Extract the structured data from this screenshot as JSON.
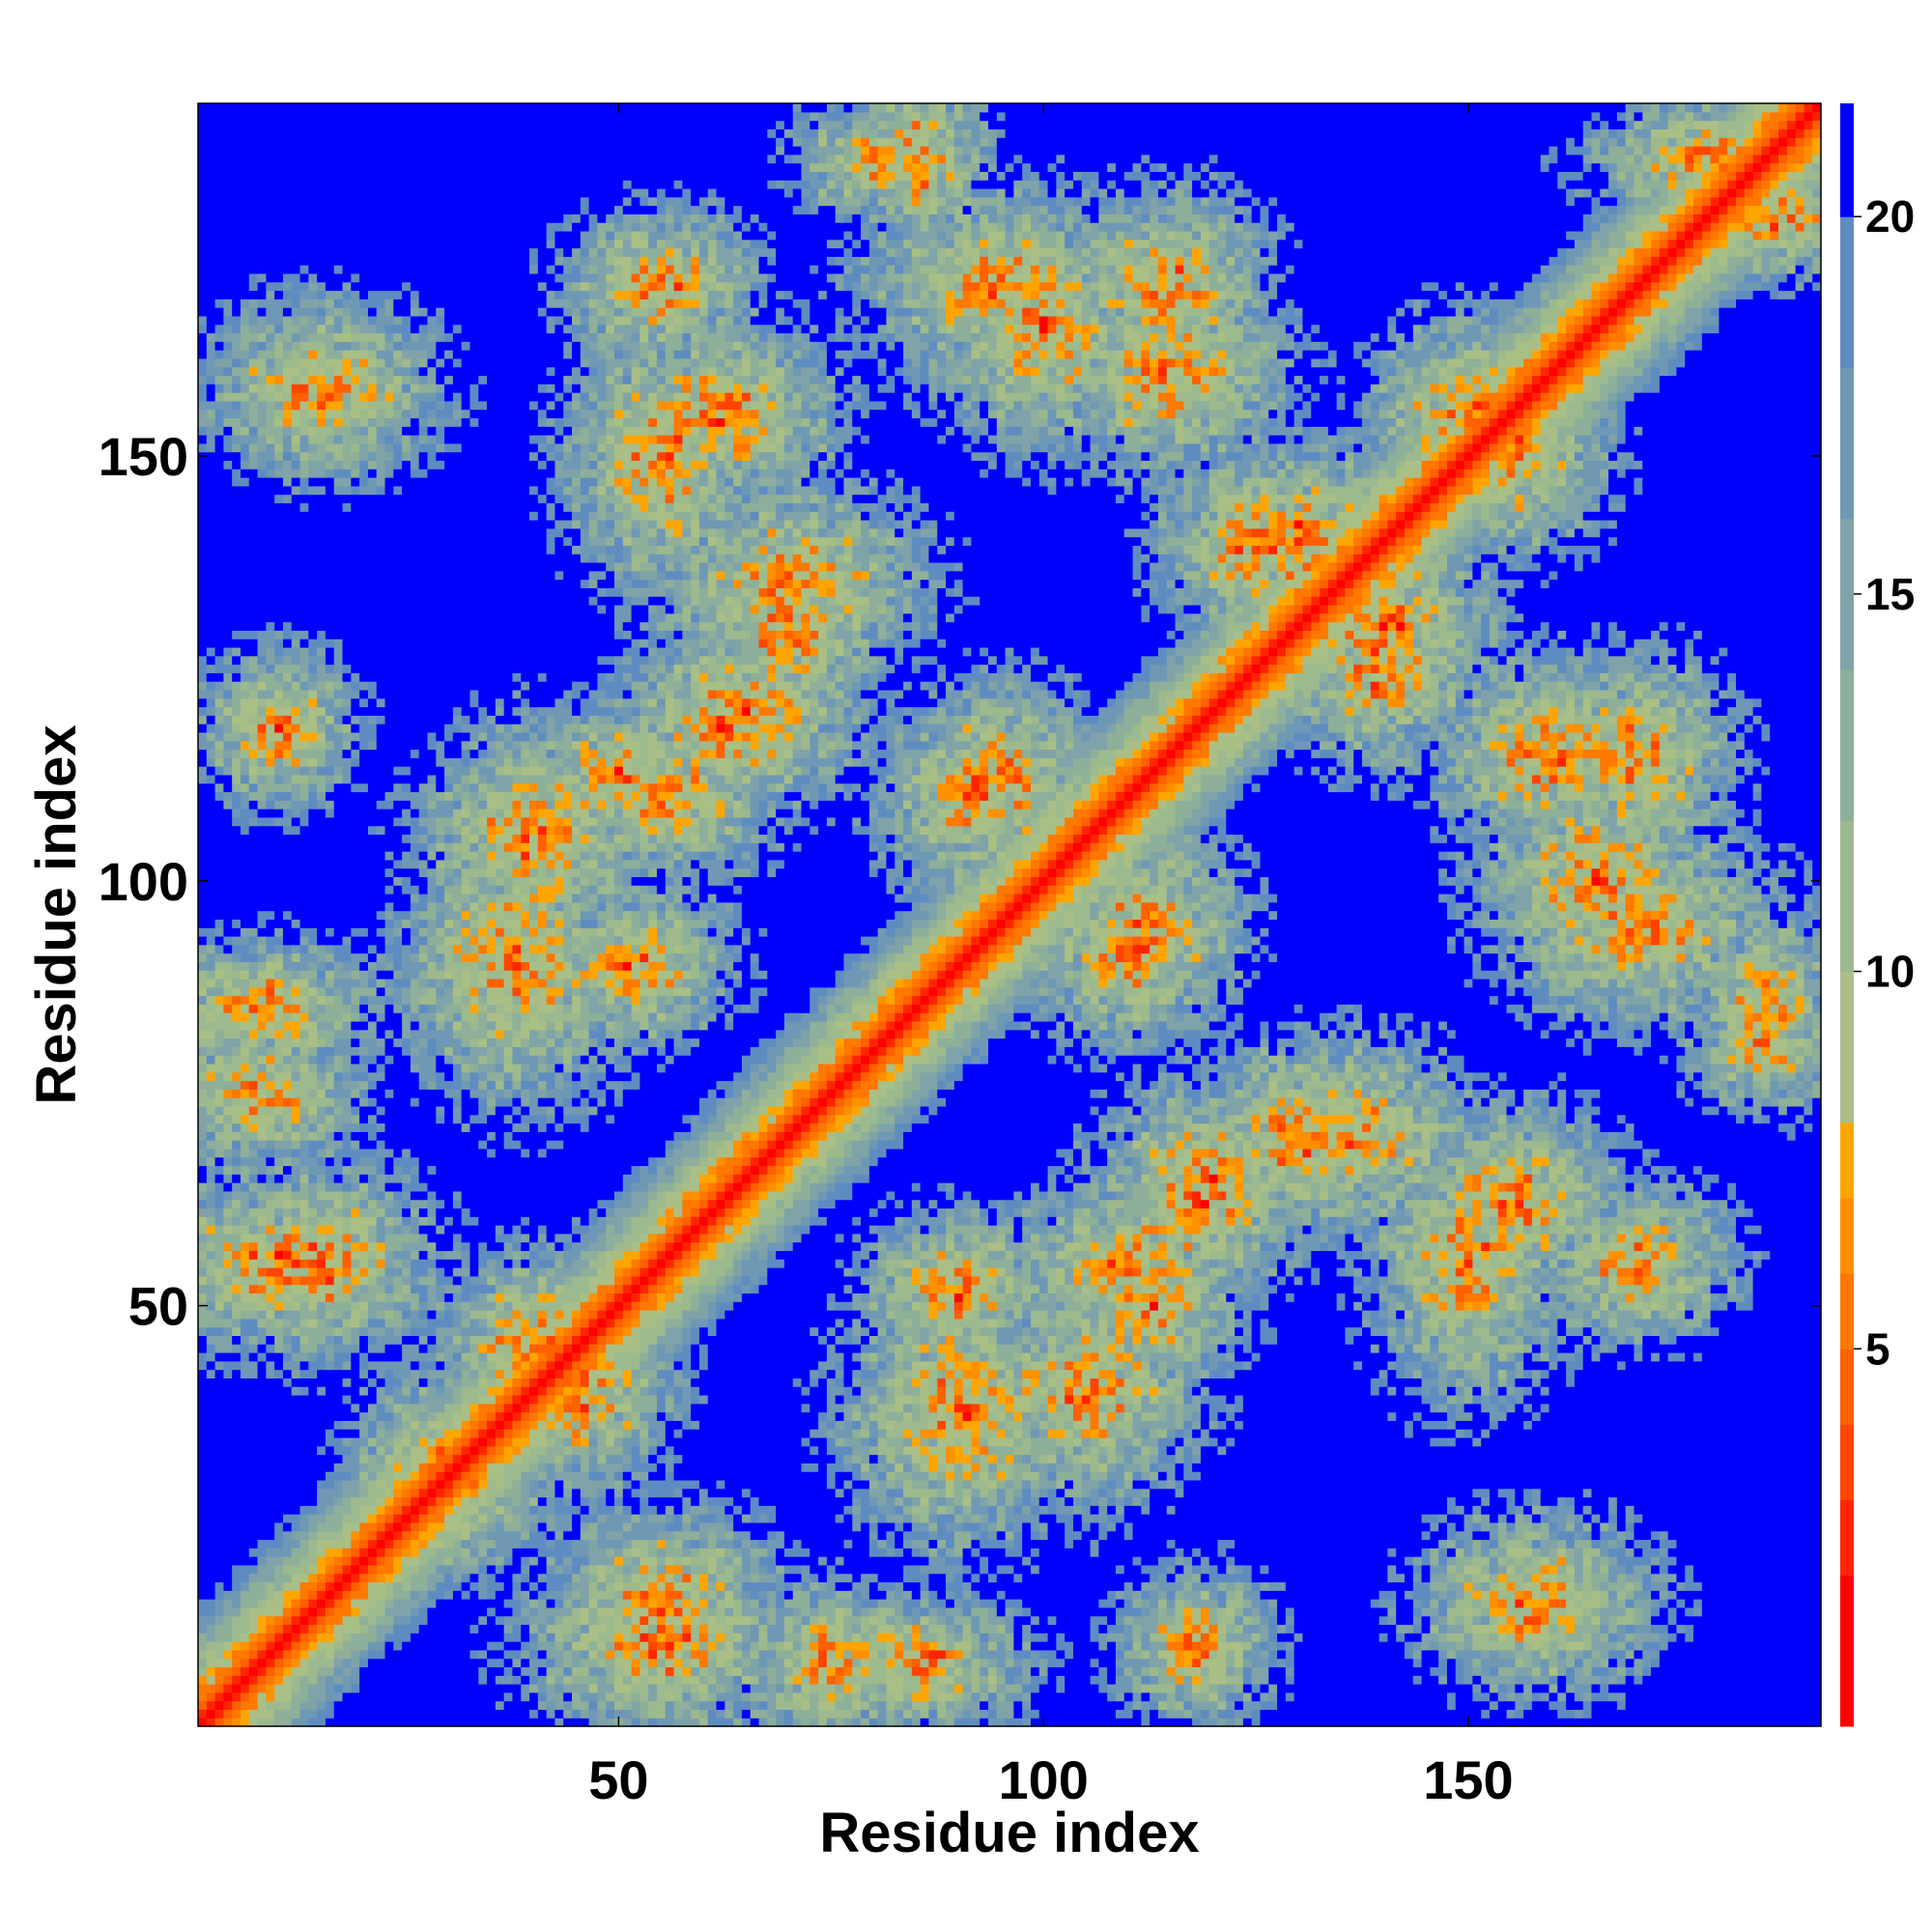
{
  "chart_data": {
    "type": "heatmap",
    "title": "",
    "xlabel": "Residue index",
    "ylabel": "Residue index",
    "n_residues": 191,
    "xlim": [
      1,
      191
    ],
    "ylim": [
      1,
      191
    ],
    "x_ticks": [
      50,
      100,
      150
    ],
    "x_tick_labels": [
      "50",
      "100",
      "150"
    ],
    "y_ticks": [
      50,
      100,
      150
    ],
    "y_tick_labels": [
      "50",
      "100",
      "150"
    ],
    "colorbar": {
      "range": [
        0,
        21.5
      ],
      "ticks": [
        5,
        10,
        15,
        20
      ],
      "tick_labels": [
        "5",
        "10",
        "15",
        "20"
      ],
      "levels": [
        {
          "max": 2,
          "color": "#ff0000"
        },
        {
          "max": 3,
          "color": "#ff2400"
        },
        {
          "max": 4,
          "color": "#ff4500"
        },
        {
          "max": 5,
          "color": "#ff6000"
        },
        {
          "max": 6,
          "color": "#ff7800"
        },
        {
          "max": 7,
          "color": "#ff9000"
        },
        {
          "max": 8,
          "color": "#ffa500"
        },
        {
          "max": 10,
          "color": "#a9bf86"
        },
        {
          "max": 12,
          "color": "#9db98e"
        },
        {
          "max": 14,
          "color": "#8eaf99"
        },
        {
          "max": 16,
          "color": "#7fa3a8"
        },
        {
          "max": 18,
          "color": "#6f98b4"
        },
        {
          "max": 20,
          "color": "#5f8cc0"
        },
        {
          "max": 21.5,
          "color": "#0000ff"
        }
      ]
    },
    "grid": false,
    "legend": "colorbar-right",
    "diagonal": {
      "description": "distance 0 on diagonal, increasing with |i-j|"
    },
    "contact_clusters": [
      {
        "x": 8,
        "y": 75,
        "rx": 10,
        "ry": 8
      },
      {
        "x": 15,
        "y": 55,
        "rx": 12,
        "ry": 10
      },
      {
        "x": 10,
        "y": 118,
        "rx": 8,
        "ry": 8
      },
      {
        "x": 55,
        "y": 10,
        "rx": 14,
        "ry": 9
      },
      {
        "x": 85,
        "y": 8,
        "rx": 12,
        "ry": 7
      },
      {
        "x": 90,
        "y": 38,
        "rx": 12,
        "ry": 14
      },
      {
        "x": 105,
        "y": 40,
        "rx": 10,
        "ry": 12
      },
      {
        "x": 90,
        "y": 52,
        "rx": 10,
        "ry": 8
      },
      {
        "x": 110,
        "y": 55,
        "rx": 12,
        "ry": 8
      },
      {
        "x": 120,
        "y": 65,
        "rx": 12,
        "ry": 10
      },
      {
        "x": 135,
        "y": 70,
        "rx": 14,
        "ry": 10
      },
      {
        "x": 155,
        "y": 62,
        "rx": 12,
        "ry": 10
      },
      {
        "x": 158,
        "y": 15,
        "rx": 12,
        "ry": 9
      },
      {
        "x": 40,
        "y": 105,
        "rx": 12,
        "ry": 10
      },
      {
        "x": 50,
        "y": 112,
        "rx": 10,
        "ry": 8
      },
      {
        "x": 62,
        "y": 118,
        "rx": 10,
        "ry": 10
      },
      {
        "x": 70,
        "y": 130,
        "rx": 10,
        "ry": 10
      },
      {
        "x": 55,
        "y": 150,
        "rx": 10,
        "ry": 14
      },
      {
        "x": 55,
        "y": 170,
        "rx": 10,
        "ry": 8
      },
      {
        "x": 80,
        "y": 185,
        "rx": 8,
        "ry": 6
      },
      {
        "x": 95,
        "y": 170,
        "rx": 14,
        "ry": 10
      },
      {
        "x": 115,
        "y": 170,
        "rx": 10,
        "ry": 10
      },
      {
        "x": 130,
        "y": 140,
        "rx": 12,
        "ry": 10
      },
      {
        "x": 140,
        "y": 125,
        "rx": 10,
        "ry": 10
      },
      {
        "x": 160,
        "y": 115,
        "rx": 12,
        "ry": 10
      },
      {
        "x": 165,
        "y": 100,
        "rx": 12,
        "ry": 12
      },
      {
        "x": 112,
        "y": 95,
        "rx": 10,
        "ry": 10
      },
      {
        "x": 92,
        "y": 110,
        "rx": 10,
        "ry": 10
      },
      {
        "x": 185,
        "y": 85,
        "rx": 7,
        "ry": 10
      },
      {
        "x": 178,
        "y": 185,
        "rx": 12,
        "ry": 6
      },
      {
        "x": 40,
        "y": 45,
        "rx": 10,
        "ry": 10
      },
      {
        "x": 30,
        "y": 30,
        "rx": 10,
        "ry": 10
      },
      {
        "x": 155,
        "y": 150,
        "rx": 10,
        "ry": 10
      }
    ]
  }
}
